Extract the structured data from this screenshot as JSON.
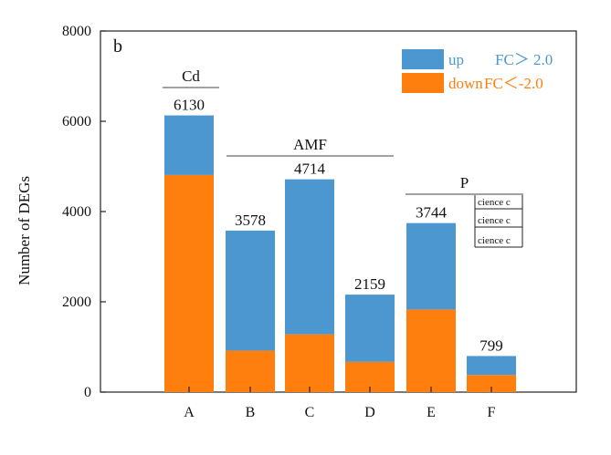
{
  "chart_data": {
    "type": "bar",
    "stacked": true,
    "panel_label": "b",
    "categories": [
      "A",
      "B",
      "C",
      "D",
      "E",
      "F"
    ],
    "series": [
      {
        "name": "down FC＜-2.0",
        "color": "#ff7f0e",
        "values": [
          4810,
          920,
          1280,
          670,
          1830,
          380
        ]
      },
      {
        "name": "up     FC＞ 2.0",
        "color": "#4c97cf",
        "values": [
          1320,
          2658,
          3434,
          1489,
          1914,
          419
        ]
      }
    ],
    "totals": [
      "6130",
      "3578",
      "4714",
      "2159",
      "3744",
      "799"
    ],
    "ylabel": "Number of DEGs",
    "xlabel": "",
    "ylim": [
      0,
      8000
    ],
    "yticks": [
      "0",
      "2000",
      "4000",
      "6000",
      "8000"
    ],
    "grid": false,
    "legend_position": "top-right",
    "legend": [
      {
        "label_a": "up",
        "label_b": "FC＞ 2.0",
        "color": "#4c97cf",
        "text_color": "#4c97cf"
      },
      {
        "label_a": "down",
        "label_b": "FC＜-2.0",
        "color": "#ff7f0e",
        "text_color": "#ff7f0e"
      }
    ],
    "groups": [
      {
        "label": "Cd",
        "from": 0,
        "to": 0
      },
      {
        "label": "AMF",
        "from": 1,
        "to": 3
      },
      {
        "label": "P",
        "from": 4,
        "to": 5
      }
    ],
    "overlay_snippets": [
      "cience c",
      "cience c",
      "cience c"
    ]
  }
}
